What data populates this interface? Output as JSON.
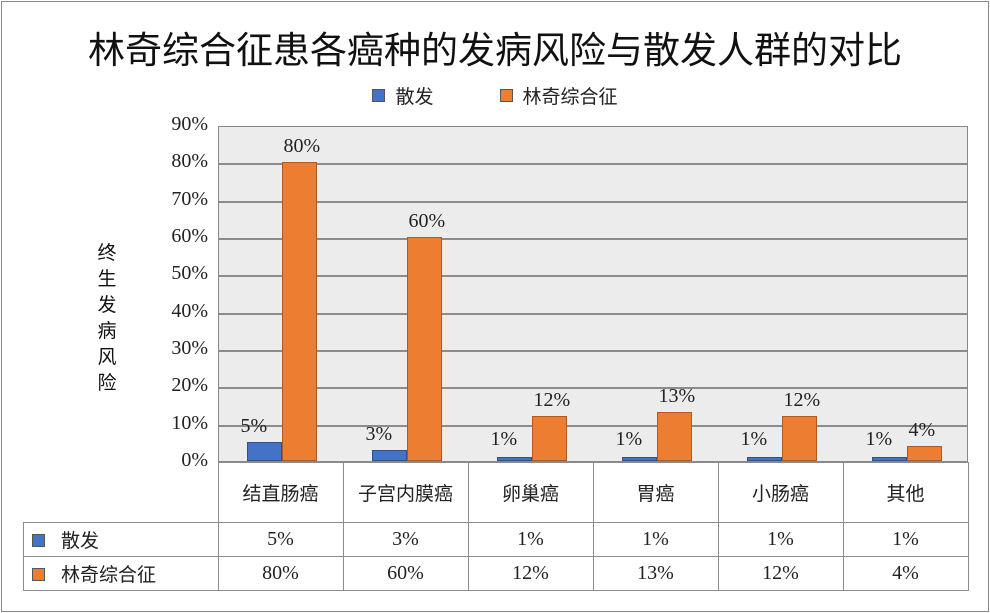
{
  "title": "林奇综合征患各癌种的发病风险与散发人群的对比",
  "legend": [
    {
      "label": "散发",
      "color": "#4472C4"
    },
    {
      "label": "林奇综合征",
      "color": "#ED7D31"
    }
  ],
  "ylabel": [
    "终",
    "生",
    "发",
    "病",
    "风",
    "险"
  ],
  "yticks": [
    "0%",
    "10%",
    "20%",
    "30%",
    "40%",
    "50%",
    "60%",
    "70%",
    "80%",
    "90%"
  ],
  "table": {
    "categories": [
      "结直肠癌",
      "子宫内膜癌",
      "卵巢癌",
      "胃癌",
      "小肠癌",
      "其他"
    ],
    "rows": [
      {
        "name": "散发",
        "values": [
          "5%",
          "3%",
          "1%",
          "1%",
          "1%",
          "1%"
        ]
      },
      {
        "name": "林奇综合征",
        "values": [
          "80%",
          "60%",
          "12%",
          "13%",
          "12%",
          "4%"
        ]
      }
    ]
  },
  "chart_data": {
    "type": "bar",
    "title": "林奇综合征患各癌种的发病风险与散发人群的对比",
    "xlabel": "",
    "ylabel": "终生发病风险",
    "ylim": [
      0,
      90
    ],
    "yticks": [
      "0%",
      "10%",
      "20%",
      "30%",
      "40%",
      "50%",
      "60%",
      "70%",
      "80%",
      "90%"
    ],
    "grid": true,
    "legend_position": "top",
    "categories": [
      "结直肠癌",
      "子宫内膜癌",
      "卵巢癌",
      "胃癌",
      "小肠癌",
      "其他"
    ],
    "series": [
      {
        "name": "散发",
        "color": "#4472C4",
        "values": [
          5,
          3,
          1,
          1,
          1,
          1
        ]
      },
      {
        "name": "林奇综合征",
        "color": "#ED7D31",
        "values": [
          80,
          60,
          12,
          13,
          12,
          4
        ]
      }
    ],
    "data_table": true
  }
}
